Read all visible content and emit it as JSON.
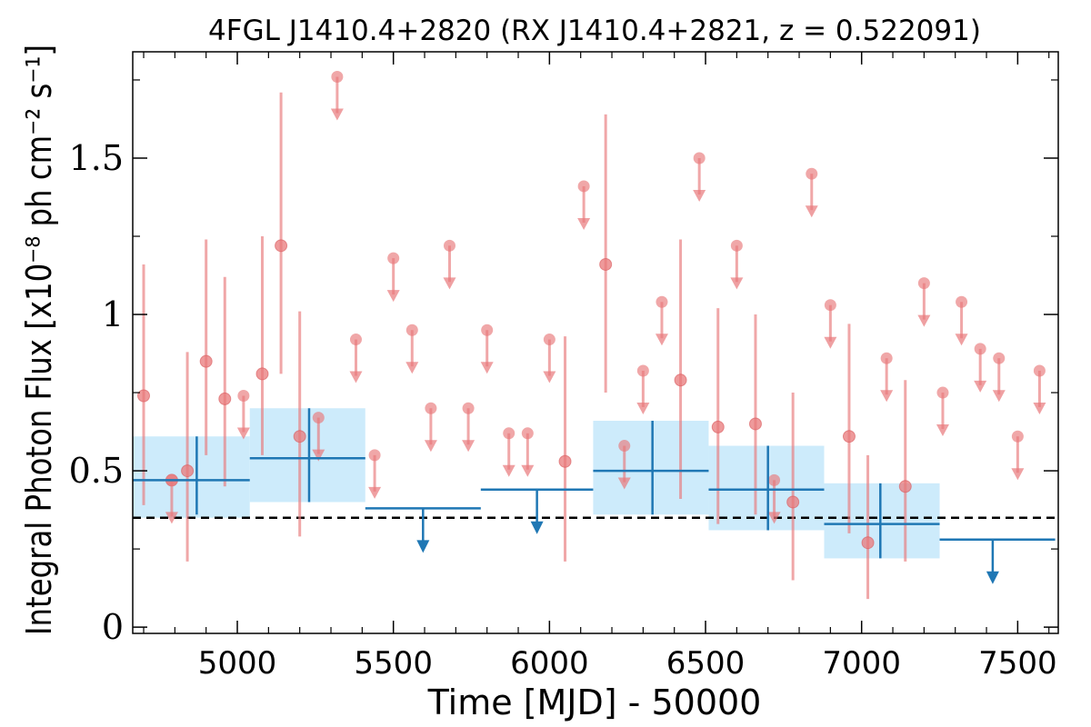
{
  "chart_data": {
    "type": "scatter",
    "title": "4FGL J1410.4+2820 (RX J1410.4+2821, z = 0.522091)",
    "xlabel": "Time [MJD] - 50000",
    "ylabel": "Integral Photon Flux [x10⁻⁸ ph cm⁻² s⁻¹]",
    "xlim": [
      4665,
      7630
    ],
    "ylim": [
      -0.02,
      1.84
    ],
    "x_ticks": [
      5000,
      5500,
      6000,
      6500,
      7000,
      7500
    ],
    "x_tick_labels": [
      "5000",
      "5500",
      "6000",
      "6500",
      "7000",
      "7500"
    ],
    "y_ticks": [
      0,
      0.5,
      1,
      1.5
    ],
    "y_tick_labels": [
      "0",
      "0.5",
      "1",
      "1.5"
    ],
    "reference_level": 0.35,
    "colors": {
      "short_bins": "#e8787a",
      "long_bins": "#1f77b4",
      "band": "#cdebfb",
      "reference_line": "#000000"
    },
    "series": [
      {
        "kind": "short_bins_detected",
        "points": [
          {
            "x": 4700,
            "y": 0.74,
            "ylo": 0.39,
            "yhi": 1.16
          },
          {
            "x": 4790,
            "y": 0.47,
            "ylo": 0.47,
            "yhi": 0.47
          },
          {
            "x": 4840,
            "y": 0.5,
            "ylo": 0.21,
            "yhi": 0.88
          },
          {
            "x": 4900,
            "y": 0.85,
            "ylo": 0.55,
            "yhi": 1.24
          },
          {
            "x": 4960,
            "y": 0.73,
            "ylo": 0.45,
            "yhi": 1.12
          },
          {
            "x": 5080,
            "y": 0.81,
            "ylo": 0.55,
            "yhi": 1.25
          },
          {
            "x": 5140,
            "y": 1.22,
            "ylo": 0.81,
            "yhi": 1.71
          },
          {
            "x": 5200,
            "y": 0.61,
            "ylo": 0.29,
            "yhi": 1.01
          },
          {
            "x": 6050,
            "y": 0.53,
            "ylo": 0.21,
            "yhi": 0.93
          },
          {
            "x": 6180,
            "y": 1.16,
            "ylo": 0.75,
            "yhi": 1.64
          },
          {
            "x": 6420,
            "y": 0.79,
            "ylo": 0.41,
            "yhi": 1.24
          },
          {
            "x": 6540,
            "y": 0.64,
            "ylo": 0.33,
            "yhi": 1.02
          },
          {
            "x": 6660,
            "y": 0.65,
            "ylo": 0.36,
            "yhi": 1.0
          },
          {
            "x": 6780,
            "y": 0.4,
            "ylo": 0.15,
            "yhi": 0.75
          },
          {
            "x": 6960,
            "y": 0.61,
            "ylo": 0.3,
            "yhi": 0.97
          },
          {
            "x": 7020,
            "y": 0.27,
            "ylo": 0.09,
            "yhi": 0.55
          },
          {
            "x": 7140,
            "y": 0.45,
            "ylo": 0.21,
            "yhi": 0.79
          }
        ]
      },
      {
        "kind": "short_bins_upper_limits",
        "points": [
          {
            "x": 4790,
            "y": 0.47
          },
          {
            "x": 5020,
            "y": 0.74
          },
          {
            "x": 5260,
            "y": 0.67
          },
          {
            "x": 5320,
            "y": 1.76
          },
          {
            "x": 5380,
            "y": 0.92
          },
          {
            "x": 5440,
            "y": 0.55
          },
          {
            "x": 5500,
            "y": 1.18
          },
          {
            "x": 5560,
            "y": 0.95
          },
          {
            "x": 5620,
            "y": 0.7
          },
          {
            "x": 5680,
            "y": 1.22
          },
          {
            "x": 5740,
            "y": 0.7
          },
          {
            "x": 5800,
            "y": 0.95
          },
          {
            "x": 5870,
            "y": 0.62
          },
          {
            "x": 5930,
            "y": 0.62
          },
          {
            "x": 6000,
            "y": 0.92
          },
          {
            "x": 6110,
            "y": 1.41
          },
          {
            "x": 6240,
            "y": 0.58
          },
          {
            "x": 6300,
            "y": 0.82
          },
          {
            "x": 6360,
            "y": 1.04
          },
          {
            "x": 6480,
            "y": 1.5
          },
          {
            "x": 6600,
            "y": 1.22
          },
          {
            "x": 6720,
            "y": 0.47
          },
          {
            "x": 6840,
            "y": 1.45
          },
          {
            "x": 6900,
            "y": 1.03
          },
          {
            "x": 7080,
            "y": 0.86
          },
          {
            "x": 7200,
            "y": 1.1
          },
          {
            "x": 7260,
            "y": 0.75
          },
          {
            "x": 7320,
            "y": 1.04
          },
          {
            "x": 7380,
            "y": 0.89
          },
          {
            "x": 7440,
            "y": 0.86
          },
          {
            "x": 7500,
            "y": 0.61
          },
          {
            "x": 7570,
            "y": 0.82
          }
        ]
      },
      {
        "kind": "long_bins_detected",
        "points": [
          {
            "x0": 4665,
            "x1": 5040,
            "xc": 4870,
            "y": 0.47,
            "ylo": 0.36,
            "yhi": 0.61,
            "band_lo": 0.35,
            "band_hi": 0.61
          },
          {
            "x0": 5040,
            "x1": 5410,
            "xc": 5230,
            "y": 0.54,
            "ylo": 0.4,
            "yhi": 0.7,
            "band_lo": 0.4,
            "band_hi": 0.7
          },
          {
            "x0": 6140,
            "x1": 6510,
            "xc": 6330,
            "y": 0.5,
            "ylo": 0.36,
            "yhi": 0.66,
            "band_lo": 0.36,
            "band_hi": 0.66
          },
          {
            "x0": 6510,
            "x1": 6880,
            "xc": 6700,
            "y": 0.44,
            "ylo": 0.31,
            "yhi": 0.58,
            "band_lo": 0.31,
            "band_hi": 0.58
          },
          {
            "x0": 6880,
            "x1": 7250,
            "xc": 7060,
            "y": 0.33,
            "ylo": 0.22,
            "yhi": 0.46,
            "band_lo": 0.22,
            "band_hi": 0.46
          }
        ]
      },
      {
        "kind": "long_bins_upper_limits",
        "points": [
          {
            "x0": 5410,
            "x1": 5780,
            "xc": 5595,
            "y": 0.38
          },
          {
            "x0": 5780,
            "x1": 6140,
            "xc": 5960,
            "y": 0.44
          },
          {
            "x0": 7250,
            "x1": 7620,
            "xc": 7420,
            "y": 0.28
          }
        ]
      }
    ]
  }
}
